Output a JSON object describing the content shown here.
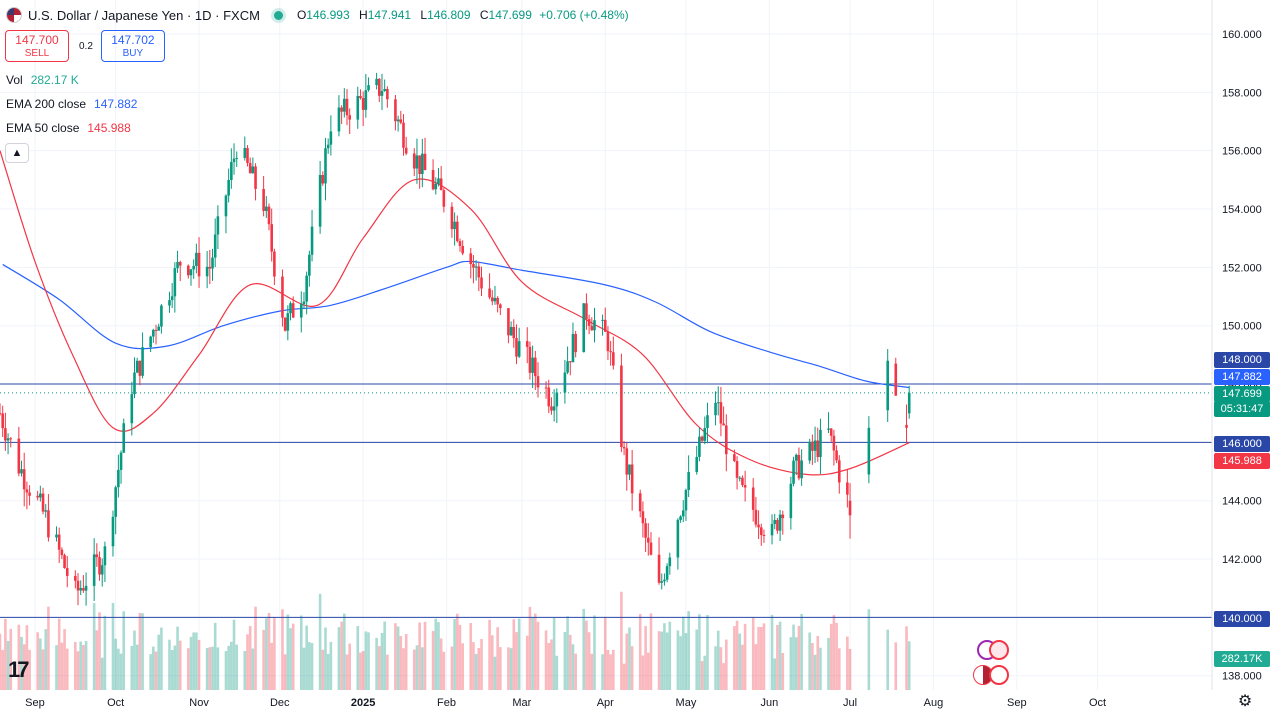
{
  "header": {
    "title": "U.S. Dollar / Japanese Yen · 1D · FXCM",
    "open_label": "O",
    "open": "146.993",
    "high_label": "H",
    "high": "147.941",
    "low_label": "L",
    "low": "146.809",
    "close_label": "C",
    "close": "147.699",
    "change": "+0.706 (+0.48%)"
  },
  "trade": {
    "sell_price": "147.700",
    "sell_label": "SELL",
    "spread": "0.2",
    "buy_price": "147.702",
    "buy_label": "BUY"
  },
  "indicators": {
    "vol_label": "Vol",
    "vol_value": "282.17 K",
    "ema200_label": "EMA 200 close",
    "ema200_value": "147.882",
    "ema50_label": "EMA 50 close",
    "ema50_value": "145.988"
  },
  "price_axis": {
    "ticks": [
      "160.000",
      "158.000",
      "156.000",
      "154.000",
      "152.000",
      "150.000",
      "148.000",
      "146.000",
      "144.000",
      "142.000",
      "140.000",
      "138.000"
    ],
    "tags": {
      "level_148": "148.000",
      "ema200": "147.882",
      "last": "147.699",
      "countdown": "05:31:47",
      "level_146": "146.000",
      "ema50": "145.988",
      "level_140": "140.000",
      "volume": "282.17K"
    }
  },
  "time_axis": {
    "labels": [
      "Sep",
      "Oct",
      "Nov",
      "Dec",
      "2025",
      "Feb",
      "Mar",
      "Apr",
      "May",
      "Jun",
      "Jul",
      "Aug",
      "Sep",
      "Oct"
    ]
  },
  "colors": {
    "up": "#089981",
    "down": "#f23645",
    "ema200": "#2962ff",
    "ema50": "#f23645",
    "hline": "#2a47a8"
  },
  "chart_data": {
    "type": "candlestick",
    "title": "U.S. Dollar / Japanese Yen · 1D · FXCM",
    "y_range": [
      137.5,
      160.8
    ],
    "horizontal_levels": [
      148.0,
      146.0,
      140.0
    ],
    "series": [
      {
        "name": "EMA 200 close",
        "last": 147.882,
        "points": [
          [
            "2024-08-20",
            152.1
          ],
          [
            "2024-09-10",
            150.9
          ],
          [
            "2024-10-01",
            149.4
          ],
          [
            "2024-10-20",
            149.3
          ],
          [
            "2024-11-10",
            150.0
          ],
          [
            "2024-12-01",
            150.5
          ],
          [
            "2024-12-20",
            150.7
          ],
          [
            "2025-01-10",
            151.3
          ],
          [
            "2025-02-01",
            152.0
          ],
          [
            "2025-02-10",
            152.2
          ],
          [
            "2025-03-01",
            151.9
          ],
          [
            "2025-04-01",
            151.4
          ],
          [
            "2025-04-20",
            150.8
          ],
          [
            "2025-05-10",
            149.8
          ],
          [
            "2025-06-01",
            149.1
          ],
          [
            "2025-06-20",
            148.6
          ],
          [
            "2025-07-07",
            148.1
          ],
          [
            "2025-07-23",
            147.88
          ]
        ]
      },
      {
        "name": "EMA 50 close",
        "last": 145.988,
        "points": [
          [
            "2024-08-19",
            156.0
          ],
          [
            "2024-09-01",
            152.2
          ],
          [
            "2024-09-15",
            149.0
          ],
          [
            "2024-09-30",
            146.5
          ],
          [
            "2024-10-15",
            147.0
          ],
          [
            "2024-11-01",
            149.0
          ],
          [
            "2024-11-20",
            151.4
          ],
          [
            "2024-12-15",
            150.7
          ],
          [
            "2025-01-01",
            153.0
          ],
          [
            "2025-01-20",
            155.0
          ],
          [
            "2025-02-10",
            154.0
          ],
          [
            "2025-03-01",
            151.5
          ],
          [
            "2025-03-25",
            150.2
          ],
          [
            "2025-04-15",
            149.0
          ],
          [
            "2025-05-05",
            146.6
          ],
          [
            "2025-05-25",
            145.4
          ],
          [
            "2025-06-15",
            144.9
          ],
          [
            "2025-07-01",
            145.1
          ],
          [
            "2025-07-23",
            145.99
          ]
        ]
      }
    ],
    "candles": [
      {
        "date": "2025-07-01",
        "o": 144.0,
        "h": 144.6,
        "l": 142.7,
        "c": 143.5
      },
      {
        "date": "2025-07-08",
        "o": 144.9,
        "h": 146.9,
        "l": 144.6,
        "c": 146.5
      },
      {
        "date": "2025-07-15",
        "o": 147.1,
        "h": 149.2,
        "l": 146.7,
        "c": 148.8
      },
      {
        "date": "2025-07-18",
        "o": 148.7,
        "h": 148.9,
        "l": 147.6,
        "c": 147.6
      },
      {
        "date": "2025-07-22",
        "o": 146.6,
        "h": 147.3,
        "l": 146.0,
        "c": 146.5
      },
      {
        "date": "2025-07-23",
        "o": 146.993,
        "h": 147.941,
        "l": 146.809,
        "c": 147.699
      }
    ],
    "volume_last": "282.17K"
  }
}
